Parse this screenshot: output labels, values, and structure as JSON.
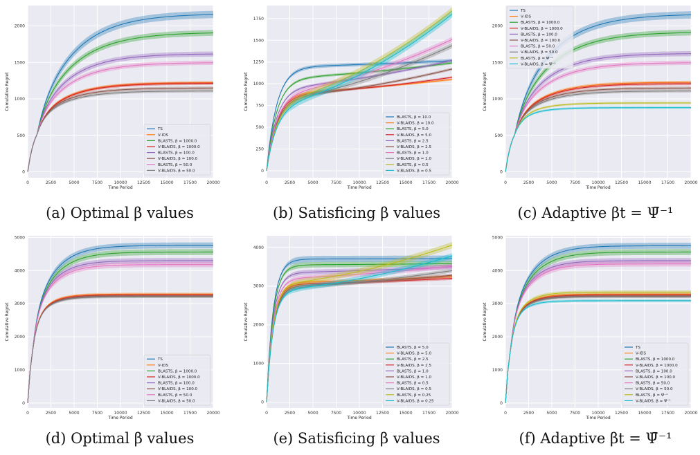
{
  "colors": {
    "plot_bg": "#eaeaf2",
    "grid": "#ffffff",
    "palette": [
      "#1f77b4",
      "#ff7f0e",
      "#2ca02c",
      "#d62728",
      "#9467bd",
      "#8c564b",
      "#e377c2",
      "#7f7f7f",
      "#bcbd22",
      "#17becf"
    ]
  },
  "captions": [
    {
      "text": "(a) Optimal β values"
    },
    {
      "text": "(b) Satisficing β values"
    },
    {
      "text": "(c) Adaptive βt = Ψ̄⁻¹"
    },
    {
      "text": "(d) Optimal β values"
    },
    {
      "text": "(e) Satisficing β values"
    },
    {
      "text": "(f) Adaptive βt = Ψ̄⁻¹"
    }
  ],
  "chart_data": [
    {
      "id": "a",
      "type": "line",
      "xlabel": "Time Period",
      "ylabel": "Cumulative Regret",
      "xlim": [
        0,
        20000
      ],
      "ylim": [
        -80,
        2280
      ],
      "xticks": [
        0,
        2500,
        5000,
        7500,
        10000,
        12500,
        15000,
        17500,
        20000
      ],
      "yticks": [
        0,
        500,
        1000,
        1500,
        2000
      ],
      "grid": true,
      "legend_position": "lower-right",
      "series": [
        {
          "name": "TS",
          "final": 2170,
          "knee": 0.2,
          "width": 50
        },
        {
          "name": "V-IDS",
          "final": 1225,
          "knee": 0.17,
          "width": 20
        },
        {
          "name": "BLASTS, β = 1000.0",
          "final": 1915,
          "knee": 0.2,
          "width": 40
        },
        {
          "name": "V-BLAIDS, β = 1000.0",
          "final": 1215,
          "knee": 0.17,
          "width": 20
        },
        {
          "name": "BLASTS, β = 100.0",
          "final": 1620,
          "knee": 0.18,
          "width": 35
        },
        {
          "name": "V-BLAIDS, β = 100.0",
          "final": 1150,
          "knee": 0.16,
          "width": 20
        },
        {
          "name": "BLASTS, β = 50.0",
          "final": 1500,
          "knee": 0.18,
          "width": 30
        },
        {
          "name": "V-BLAIDS, β = 50.0",
          "final": 1110,
          "knee": 0.16,
          "width": 20
        }
      ]
    },
    {
      "id": "b",
      "type": "line",
      "xlabel": "Time Period",
      "ylabel": "Cumulative Regret",
      "xlim": [
        0,
        20000
      ],
      "ylim": [
        -80,
        1900
      ],
      "xticks": [
        0,
        2500,
        5000,
        7500,
        10000,
        12500,
        15000,
        17500,
        20000
      ],
      "yticks": [
        0,
        250,
        500,
        750,
        1000,
        1250,
        1500,
        1750
      ],
      "grid": true,
      "legend_position": "lower-right",
      "series": [
        {
          "name": "BLASTS, β = 10.0",
          "plateau": 1200,
          "final": 1265,
          "width": 20
        },
        {
          "name": "V-BLAIDS, β = 10.0",
          "plateau": 900,
          "final": 1050,
          "width": 12
        },
        {
          "name": "BLASTS, β = 5.0",
          "plateau": 1070,
          "final": 1240,
          "width": 15
        },
        {
          "name": "V-BLAIDS, β = 5.0",
          "plateau": 880,
          "final": 1075,
          "width": 12
        },
        {
          "name": "BLASTS, β = 2.5",
          "plateau": 960,
          "final": 1270,
          "width": 15
        },
        {
          "name": "V-BLAIDS, β = 2.5",
          "plateau": 850,
          "final": 1170,
          "width": 15
        },
        {
          "name": "BLASTS, β = 1.0",
          "plateau": 890,
          "final": 1510,
          "width": 30
        },
        {
          "name": "V-BLAIDS, β = 1.0",
          "plateau": 820,
          "final": 1440,
          "width": 30
        },
        {
          "name": "BLASTS, β = 0.5",
          "plateau": 800,
          "final": 1840,
          "width": 40
        },
        {
          "name": "V-BLAIDS, β = 0.5",
          "plateau": 760,
          "final": 1800,
          "width": 40
        }
      ]
    },
    {
      "id": "c",
      "type": "line",
      "xlabel": "Time Period",
      "ylabel": "Cumulative Regret",
      "xlim": [
        0,
        20000
      ],
      "ylim": [
        -80,
        2280
      ],
      "xticks": [
        0,
        2500,
        5000,
        7500,
        10000,
        12500,
        15000,
        17500,
        20000
      ],
      "yticks": [
        0,
        500,
        1000,
        1500,
        2000
      ],
      "grid": true,
      "legend_position": "upper-left",
      "series": [
        {
          "name": "TS",
          "final": 2165,
          "knee": 0.2,
          "width": 50
        },
        {
          "name": "V-IDS",
          "final": 1230,
          "knee": 0.17,
          "width": 20
        },
        {
          "name": "BLASTS, β = 1000.0",
          "final": 1920,
          "knee": 0.2,
          "width": 40
        },
        {
          "name": "V-BLAIDS, β = 1000.0",
          "final": 1210,
          "knee": 0.17,
          "width": 20
        },
        {
          "name": "BLASTS, β = 100.0",
          "final": 1625,
          "knee": 0.18,
          "width": 35
        },
        {
          "name": "V-BLAIDS, β = 100.0",
          "final": 1150,
          "knee": 0.16,
          "width": 20
        },
        {
          "name": "BLASTS, β = 50.0",
          "final": 1500,
          "knee": 0.18,
          "width": 30
        },
        {
          "name": "V-BLAIDS, β = 50.0",
          "final": 1110,
          "knee": 0.16,
          "width": 20
        },
        {
          "name": "BLASTS, β = Ψ̄⁻¹",
          "final": 945,
          "knee": 0.12,
          "width": 15
        },
        {
          "name": "V-BLAIDS, β = Ψ̄⁻¹",
          "final": 880,
          "knee": 0.11,
          "width": 15
        }
      ]
    },
    {
      "id": "d",
      "type": "line",
      "xlabel": "Time Period",
      "ylabel": "Cumulative Regret",
      "xlim": [
        0,
        20000
      ],
      "ylim": [
        -150,
        5050
      ],
      "xticks": [
        0,
        2500,
        5000,
        7500,
        10000,
        12500,
        15000,
        17500,
        20000
      ],
      "yticks": [
        0,
        1000,
        2000,
        3000,
        4000,
        5000
      ],
      "grid": true,
      "legend_position": "lower-right",
      "series": [
        {
          "name": "TS",
          "final": 4760,
          "knee": 0.11,
          "width": 90
        },
        {
          "name": "V-IDS",
          "final": 3290,
          "knee": 0.08,
          "width": 40
        },
        {
          "name": "BLASTS, β = 1000.0",
          "final": 4560,
          "knee": 0.11,
          "width": 90
        },
        {
          "name": "V-BLAIDS, β = 1000.0",
          "final": 3260,
          "knee": 0.08,
          "width": 40
        },
        {
          "name": "BLASTS, β = 100.0",
          "final": 4300,
          "knee": 0.1,
          "width": 80
        },
        {
          "name": "V-BLAIDS, β = 100.0",
          "final": 3230,
          "knee": 0.08,
          "width": 40
        },
        {
          "name": "BLASTS, β = 50.0",
          "final": 4180,
          "knee": 0.1,
          "width": 80
        },
        {
          "name": "V-BLAIDS, β = 50.0",
          "final": 3210,
          "knee": 0.08,
          "width": 40
        }
      ]
    },
    {
      "id": "e",
      "type": "line",
      "xlabel": "Time Period",
      "ylabel": "Cumulative Regret",
      "xlim": [
        0,
        20000
      ],
      "ylim": [
        -150,
        4300
      ],
      "xticks": [
        0,
        2500,
        5000,
        7500,
        10000,
        12500,
        15000,
        17500,
        20000
      ],
      "yticks": [
        0,
        1000,
        2000,
        3000,
        4000
      ],
      "grid": true,
      "legend_position": "lower-right",
      "series": [
        {
          "name": "BLASTS, β = 5.0",
          "plateau": 3700,
          "final": 3710,
          "width": 80
        },
        {
          "name": "V-BLAIDS, β = 5.0",
          "plateau": 3100,
          "final": 3250,
          "width": 40
        },
        {
          "name": "BLASTS, β = 2.5",
          "plateau": 3550,
          "final": 3580,
          "width": 70
        },
        {
          "name": "V-BLAIDS, β = 2.5",
          "plateau": 3050,
          "final": 3200,
          "width": 40
        },
        {
          "name": "BLASTS, β = 1.0",
          "plateau": 3350,
          "final": 3500,
          "width": 60
        },
        {
          "name": "V-BLAIDS, β = 1.0",
          "plateau": 3000,
          "final": 3280,
          "width": 40
        },
        {
          "name": "BLASTS, β = 0.5",
          "plateau": 3200,
          "final": 3520,
          "width": 60
        },
        {
          "name": "V-BLAIDS, β = 0.5",
          "plateau": 2950,
          "final": 3400,
          "width": 50
        },
        {
          "name": "BLASTS, β = 0.25",
          "plateau": 3050,
          "final": 4060,
          "width": 80
        },
        {
          "name": "V-BLAIDS, β = 0.25",
          "plateau": 2900,
          "final": 3780,
          "width": 70
        }
      ]
    },
    {
      "id": "f",
      "type": "line",
      "xlabel": "Time Period",
      "ylabel": "Cumulative Regret",
      "xlim": [
        0,
        20000
      ],
      "ylim": [
        -150,
        5050
      ],
      "xticks": [
        0,
        2500,
        5000,
        7500,
        10000,
        12500,
        15000,
        17500,
        20000
      ],
      "yticks": [
        0,
        1000,
        2000,
        3000,
        4000,
        5000
      ],
      "grid": true,
      "legend_position": "lower-right",
      "series": [
        {
          "name": "TS",
          "final": 4750,
          "knee": 0.11,
          "width": 90
        },
        {
          "name": "V-IDS",
          "final": 3290,
          "knee": 0.08,
          "width": 40
        },
        {
          "name": "BLASTS, β = 1000.0",
          "final": 4560,
          "knee": 0.11,
          "width": 90
        },
        {
          "name": "V-BLAIDS, β = 1000.0",
          "final": 3260,
          "knee": 0.08,
          "width": 40
        },
        {
          "name": "BLASTS, β = 100.0",
          "final": 4300,
          "knee": 0.1,
          "width": 80
        },
        {
          "name": "V-BLAIDS, β = 100.0",
          "final": 3230,
          "knee": 0.08,
          "width": 40
        },
        {
          "name": "BLASTS, β = 50.0",
          "final": 4200,
          "knee": 0.1,
          "width": 80
        },
        {
          "name": "V-BLAIDS, β = 50.0",
          "final": 3210,
          "knee": 0.08,
          "width": 40
        },
        {
          "name": "BLASTS, β = Ψ̄⁻¹",
          "final": 3350,
          "knee": 0.08,
          "width": 50
        },
        {
          "name": "V-BLAIDS, β = Ψ̄⁻¹",
          "final": 3090,
          "knee": 0.07,
          "width": 40
        }
      ]
    }
  ]
}
